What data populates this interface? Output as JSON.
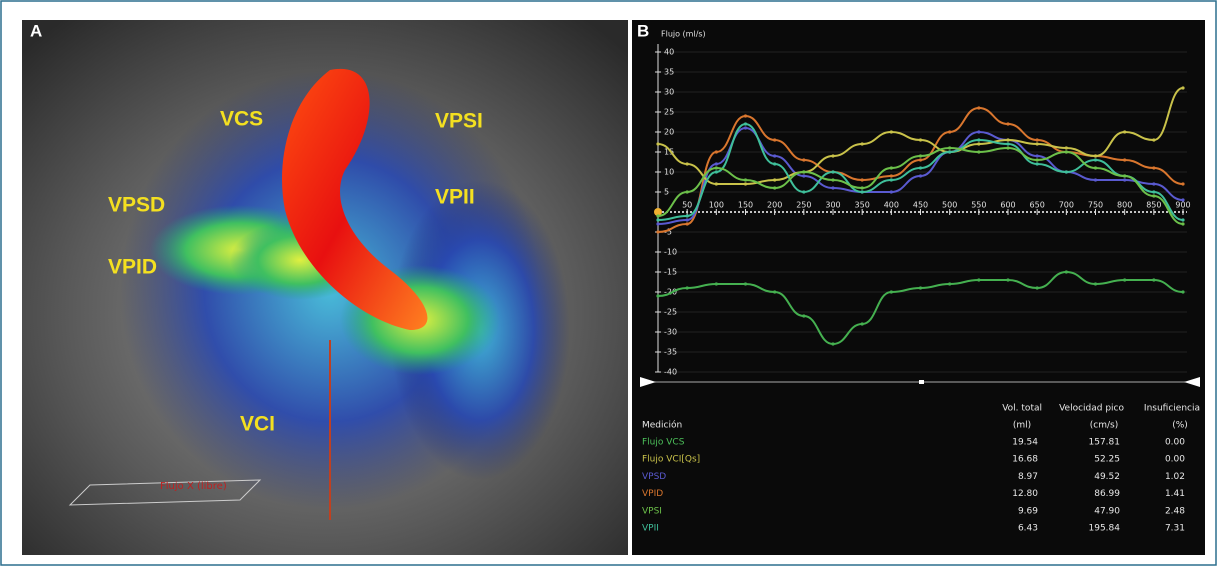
{
  "panel_a": {
    "letter": "A",
    "labels": [
      "VCS",
      "VPSI",
      "VPSD",
      "VPII",
      "VPID",
      "VCI"
    ],
    "caption": "Flujo X (libre)"
  },
  "panel_b": {
    "letter": "B"
  },
  "chart_data": {
    "type": "line",
    "ylabel": "Flujo (ml/s)",
    "x": [
      0,
      50,
      100,
      150,
      200,
      250,
      300,
      350,
      400,
      450,
      500,
      550,
      600,
      650,
      700,
      750,
      800,
      850,
      900
    ],
    "xlim": [
      0,
      900
    ],
    "xticks": [
      50,
      100,
      150,
      200,
      250,
      300,
      350,
      400,
      450,
      500,
      550,
      600,
      650,
      700,
      750,
      800,
      850,
      900
    ],
    "ylim": [
      -40,
      40
    ],
    "yticks": [
      40,
      35,
      30,
      25,
      20,
      15,
      10,
      5,
      -5,
      -10,
      -15,
      -20,
      -25,
      -30,
      -35,
      -40
    ],
    "grid": true,
    "series": [
      {
        "color": "#d9762e",
        "values": [
          -5,
          -3,
          15,
          24,
          18,
          13,
          10,
          8,
          9,
          13,
          20,
          26,
          22,
          18,
          15,
          14,
          13,
          11,
          7
        ]
      },
      {
        "color": "#5a5ad0",
        "values": [
          -3,
          -2,
          12,
          21,
          14,
          9,
          6,
          5,
          5,
          9,
          15,
          20,
          18,
          14,
          10,
          8,
          8,
          7,
          3
        ]
      },
      {
        "color": "#c9c24a",
        "values": [
          17,
          12,
          7,
          7,
          8,
          10,
          14,
          17,
          20,
          18,
          15,
          17,
          18,
          17,
          16,
          14,
          20,
          18,
          31
        ]
      },
      {
        "color": "#3fbf9a",
        "values": [
          -2,
          -1,
          10,
          22,
          12,
          5,
          10,
          5,
          8,
          11,
          15,
          18,
          17,
          12,
          10,
          13,
          9,
          5,
          -2
        ]
      },
      {
        "color": "#6cc04a",
        "values": [
          -1,
          5,
          11,
          8,
          6,
          10,
          8,
          6,
          11,
          14,
          16,
          15,
          16,
          13,
          15,
          11,
          9,
          4,
          -3
        ]
      },
      {
        "color": "#45b050",
        "values": [
          -21,
          -19,
          -18,
          -18,
          -20,
          -26,
          -33,
          -28,
          -20,
          -19,
          -18,
          -17,
          -17,
          -19,
          -15,
          -18,
          -17,
          -17,
          -20
        ]
      }
    ]
  },
  "table": {
    "row_header": "Medición",
    "columns": [
      [
        "Vol. total",
        "(ml)"
      ],
      [
        "Velocidad pico",
        "(cm/s)"
      ],
      [
        "Insuficiencia",
        "(%)"
      ]
    ],
    "row_colors": [
      "#4cc05a",
      "#c9c24a",
      "#5a5ad0",
      "#d9762e",
      "#6cc04a",
      "#3fbf9a"
    ],
    "rows": [
      [
        "Flujo VCS",
        "19.54",
        "157.81",
        "0.00"
      ],
      [
        "Flujo VCI[Qs]",
        "16.68",
        "52.25",
        "0.00"
      ],
      [
        "VPSD",
        "8.97",
        "49.52",
        "1.02"
      ],
      [
        "VPID",
        "12.80",
        "86.99",
        "1.41"
      ],
      [
        "VPSI",
        "9.69",
        "47.90",
        "2.48"
      ],
      [
        "VPII",
        "6.43",
        "195.84",
        "7.31"
      ]
    ]
  }
}
